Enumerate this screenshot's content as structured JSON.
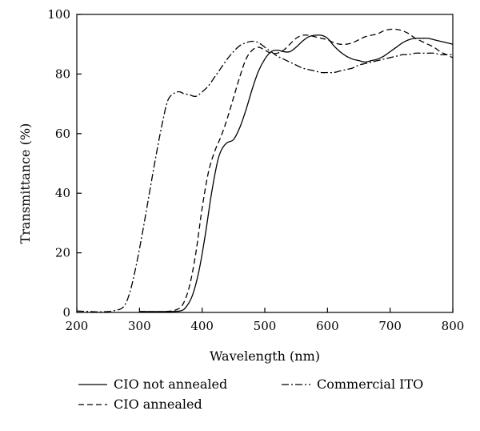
{
  "chart_data": {
    "type": "line",
    "title": "",
    "xlabel": "Wavelength (nm)",
    "ylabel": "Transmittance (%)",
    "xlim": [
      200,
      800
    ],
    "ylim": [
      0,
      100
    ],
    "xticks": [
      200,
      300,
      400,
      500,
      600,
      700,
      800
    ],
    "yticks": [
      0,
      20,
      40,
      60,
      80,
      100
    ],
    "grid": false,
    "legend_position": "bottom",
    "series": [
      {
        "name": "CIO not annealed",
        "style": "solid",
        "x": [
          300,
          340,
          365,
          375,
          385,
          395,
          405,
          415,
          425,
          432,
          440,
          450,
          460,
          470,
          480,
          490,
          500,
          510,
          520,
          530,
          540,
          550,
          560,
          570,
          580,
          590,
          600,
          610,
          620,
          630,
          640,
          650,
          660,
          670,
          680,
          690,
          700,
          710,
          720,
          730,
          740,
          750,
          760,
          770,
          780,
          790,
          800
        ],
        "y": [
          0.3,
          0.3,
          0.5,
          2,
          6,
          14,
          26,
          40,
          51,
          55,
          57,
          58,
          62,
          68,
          75,
          81,
          85,
          87.5,
          88,
          87.5,
          87.5,
          89,
          91,
          92.5,
          93,
          93,
          92,
          89.5,
          87.5,
          86,
          85,
          84.5,
          84,
          84.5,
          85,
          86,
          87.5,
          89,
          90.5,
          91.5,
          92,
          92,
          92,
          91.5,
          91,
          90.5,
          90
        ]
      },
      {
        "name": "CIO annealed",
        "style": "dashed",
        "x": [
          300,
          340,
          360,
          370,
          380,
          390,
          400,
          410,
          420,
          430,
          440,
          450,
          460,
          470,
          480,
          490,
          500,
          510,
          520,
          530,
          540,
          550,
          560,
          570,
          580,
          590,
          600,
          610,
          620,
          630,
          640,
          650,
          660,
          670,
          680,
          690,
          700,
          710,
          720,
          730,
          740,
          750,
          760,
          770,
          780,
          790,
          800
        ],
        "y": [
          0.3,
          0.3,
          1,
          3,
          9,
          20,
          35,
          47,
          54,
          59,
          65,
          72,
          79,
          85,
          88,
          89,
          88,
          87,
          87,
          88,
          90,
          92,
          93,
          93,
          92.5,
          92,
          91.5,
          90.5,
          90,
          90,
          90.5,
          91.5,
          92.5,
          93,
          93.5,
          94.5,
          95,
          95,
          94.5,
          93.5,
          92,
          91,
          90,
          89,
          87.5,
          86.5,
          85.5
        ]
      },
      {
        "name": "Commercial ITO",
        "style": "dashdot",
        "x": [
          200,
          220,
          240,
          260,
          275,
          285,
          295,
          305,
          315,
          325,
          335,
          345,
          355,
          360,
          365,
          370,
          380,
          390,
          400,
          410,
          420,
          430,
          440,
          450,
          460,
          470,
          480,
          490,
          500,
          510,
          520,
          530,
          540,
          550,
          560,
          570,
          580,
          590,
          600,
          610,
          620,
          630,
          640,
          650,
          660,
          670,
          680,
          690,
          700,
          710,
          720,
          730,
          740,
          750,
          760,
          770,
          780,
          790,
          800
        ],
        "y": [
          0.5,
          0.3,
          0.2,
          0.6,
          2,
          7,
          16,
          27,
          39,
          51,
          62,
          71,
          73.5,
          74,
          74,
          73.5,
          73,
          72.5,
          74,
          76,
          79,
          82,
          85,
          87.5,
          89.5,
          90.5,
          91,
          90.5,
          89,
          87.5,
          86,
          85,
          84,
          83,
          82,
          81.5,
          81,
          80.5,
          80.5,
          80.5,
          81,
          81.5,
          82,
          83,
          83.5,
          84,
          84.5,
          85,
          85.5,
          86,
          86.5,
          86.5,
          87,
          87,
          87,
          87,
          86.5,
          86.5,
          86.5
        ]
      }
    ]
  }
}
